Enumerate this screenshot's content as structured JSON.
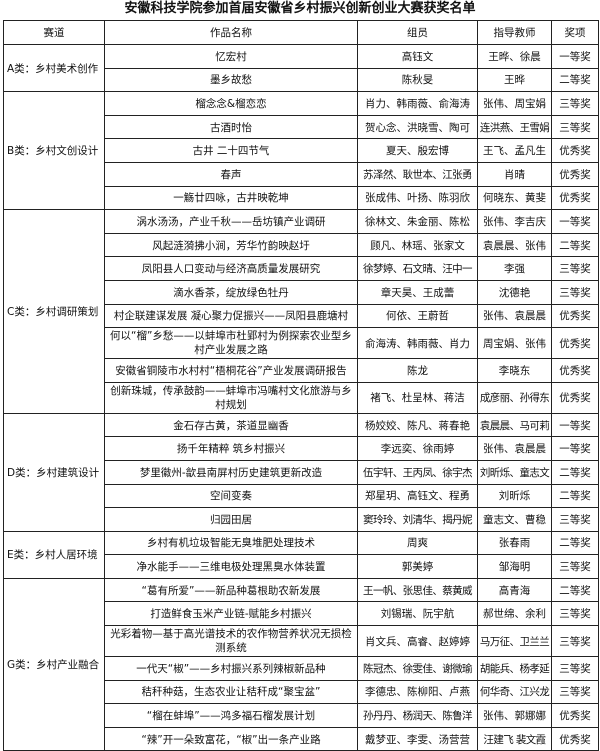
{
  "title": "安徽科技学院参加首届安徽省乡村振兴创新创业大赛获奖名单",
  "headers": [
    "赛道",
    "作品名称",
    "组员",
    "指导教师",
    "奖项"
  ],
  "tracks": [
    {
      "name": "A类：乡村美术创作",
      "rows": [
        {
          "work": "忆宏村",
          "members": "高钰文",
          "teachers": "王晔、徐晨",
          "award": "一等奖"
        },
        {
          "work": "墨乡故愁",
          "members": "陈秋旻",
          "teachers": "王晔",
          "award": "二等奖"
        }
      ]
    },
    {
      "name": "B类：乡村文创设计",
      "rows": [
        {
          "work": "榴念念&榴恋恋",
          "members": "肖力、韩雨薇、俞海涛",
          "teachers": "张伟、周宝娟",
          "award": "三等奖"
        },
        {
          "work": "古酒时怡",
          "members": "贺心念、洪晓雪、陶可",
          "teachers": "连洪燕、王雪娟",
          "award": "三等奖"
        },
        {
          "work": "古井 二十四节气",
          "members": "夏天、殷宏博",
          "teachers": "王飞、孟凡生",
          "award": "优秀奖"
        },
        {
          "work": "春声",
          "members": "苏泽然、耿世本、江张勇",
          "teachers": "肖晴",
          "award": "优秀奖"
        },
        {
          "work": "一觞廿四咏，古井映乾坤",
          "members": "张成伟、叶扬、陈羽欣",
          "teachers": "何晓东、黄斐",
          "award": "优秀奖"
        }
      ]
    },
    {
      "name": "C类：乡村调研策划",
      "rows": [
        {
          "work": "涡水汤汤，产业千秋——岳坊镇产业调研",
          "members": "徐林文、朱金丽、陈松",
          "teachers": "张伟、李吉庆",
          "award": "一等奖"
        },
        {
          "work": "风起涟漪拂小涧，芳华竹韵映赵圩",
          "members": "顾凡、林瑶、张家文",
          "teachers": "袁晨晨、张伟",
          "award": "二等奖"
        },
        {
          "work": "凤阳县人口变动与经济高质量发展研究",
          "members": "徐梦婷、石文晴、汪中一",
          "teachers": "李强",
          "award": "三等奖"
        },
        {
          "work": "滴水香茶，绽放绿色牡丹",
          "members": "章天昊、王成蕾",
          "teachers": "沈德艳",
          "award": "三等奖"
        },
        {
          "work": "村企联建谋发展 凝心聚力促振兴——凤阳县鹿塘村",
          "members": "何依、王蔚哲",
          "teachers": "张伟、袁晨晨",
          "award": "优秀奖"
        },
        {
          "work": "何以“榴”乡愁——以蚌埠市杜郢村为例探索农业型乡村产业发展之路",
          "members": "俞海涛、韩雨薇、肖力",
          "teachers": "周宝娟、张伟",
          "award": "优秀奖"
        },
        {
          "work": "安徽省铜陵市水村村“梧桐花谷”产业发展调研报告",
          "members": "陈龙",
          "teachers": "李晓东",
          "award": "优秀奖"
        },
        {
          "work": "创新珠城，传承鼓韵——蚌埠市冯嘴村文化旅游与乡村规划",
          "members": "褚飞、杜呈林、蒋洁",
          "teachers": "成彦丽、孙得东",
          "award": "优秀奖"
        }
      ]
    },
    {
      "name": "D类：乡村建筑设计",
      "rows": [
        {
          "work": "金石存古黄，茶道显幽香",
          "members": "杨姣姣、陈凡、蒋春艳",
          "teachers": "袁晨晨、马可莉",
          "award": "一等奖"
        },
        {
          "work": "扬千年精粹 筑乡村振兴",
          "members": "李远奕、徐雨婷",
          "teachers": "张伟、袁晨晨",
          "award": "一等奖"
        },
        {
          "work": "梦里徽州-歙县南屏村历史建筑更新改造",
          "members": "伍宇轩、王丙凤、徐宇杰",
          "teachers": "刘昕烁、童志文",
          "award": "二等奖"
        },
        {
          "work": "空间变奏",
          "members": "郑星玥、高钰文、程勇",
          "teachers": "刘昕烁",
          "award": "二等奖"
        },
        {
          "work": "归园田居",
          "members": "窦玲玲、刘清华、揭丹妮",
          "teachers": "童志文、曹稳",
          "award": "三等奖"
        }
      ]
    },
    {
      "name": "E类：乡村人居环境",
      "rows": [
        {
          "work": "乡村有机垃圾智能无臭堆肥处理技术",
          "members": "周爽",
          "teachers": "张春雨",
          "award": "二等奖"
        },
        {
          "work": "净水能手——三维电极处理黑臭水体装置",
          "members": "郭美婷",
          "teachers": "邹海明",
          "award": "三等奖"
        }
      ]
    },
    {
      "name": "G类：乡村产业融合",
      "rows": [
        {
          "work": "“葛有所爱”——新品种葛根助农新发展",
          "members": "王一帆、张思佳、蔡黄威",
          "teachers": "高青海",
          "award": "二等奖"
        },
        {
          "work": "打造鲜食玉米产业链-赋能乡村振兴",
          "members": "刘锡瑞、阮宇航",
          "teachers": "郝世绵、余利",
          "award": "三等奖"
        },
        {
          "work": "光彩着物—基于高光谱技术的农作物营养状况无损检测系统",
          "members": "肖文兵、高睿、赵婷婷",
          "teachers": "马万征、卫兰兰",
          "award": "三等奖"
        },
        {
          "work": "一代天“椒”——乡村振兴系列辣椒新品种",
          "members": "陈冠杰、徐雯佳、谢微瑜",
          "teachers": "胡能兵、杨孝延",
          "award": "三等奖"
        },
        {
          "work": "秸秆种菇，生态农业让秸秆成“聚宝盆”",
          "members": "李德忠、陈柳阳、卢燕",
          "teachers": "何华奇、江兴龙",
          "award": "三等奖"
        },
        {
          "work": "“榴在蚌埠”——鸿多福石榴发展计划",
          "members": "孙丹丹、杨润天、陈鲁洋",
          "teachers": "张伟、郭娜娜",
          "award": "优秀奖"
        },
        {
          "work": "“辣”开一朵致富花，“椒”出一条产业路",
          "members": "戴梦亚、李雯、汤营营",
          "teachers": "汪建飞 裴文霞",
          "award": "优秀奖"
        }
      ]
    }
  ]
}
